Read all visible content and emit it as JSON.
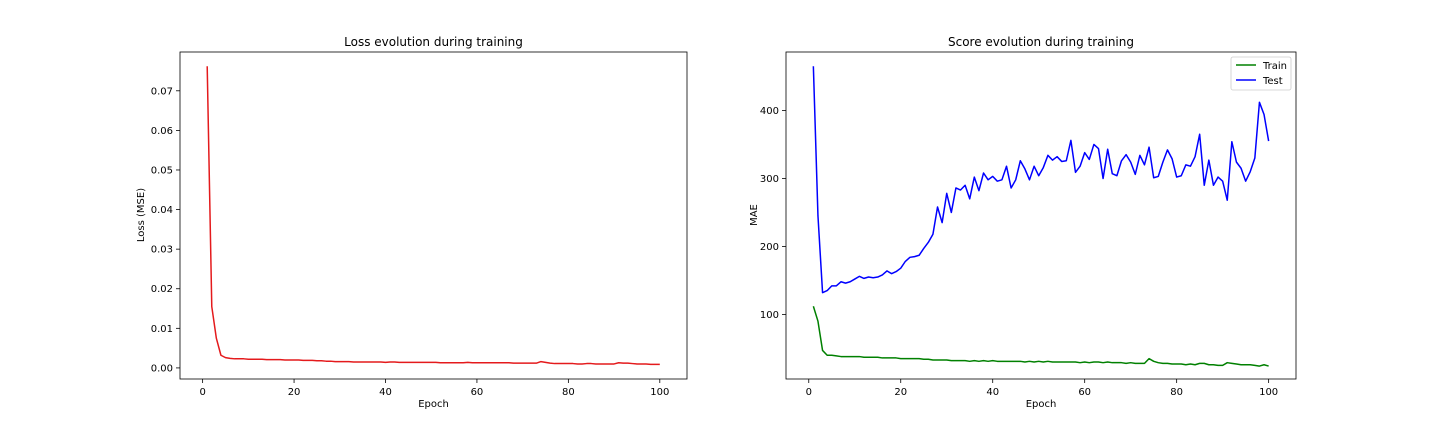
{
  "chart_data": [
    {
      "type": "line",
      "title": "Loss evolution during training",
      "xlabel": "Epoch",
      "ylabel": "Loss (MSE)",
      "xlim": [
        -4.95,
        105.95
      ],
      "ylim": [
        -0.0028,
        0.0798
      ],
      "xticks": [
        0,
        20,
        40,
        60,
        80,
        100
      ],
      "xtick_labels": [
        "0",
        "20",
        "40",
        "60",
        "80",
        "100"
      ],
      "yticks": [
        0.0,
        0.01,
        0.02,
        0.03,
        0.04,
        0.05,
        0.06,
        0.07
      ],
      "ytick_labels": [
        "0.00",
        "0.01",
        "0.02",
        "0.03",
        "0.04",
        "0.05",
        "0.06",
        "0.07"
      ],
      "grid": false,
      "x": [
        1,
        2,
        3,
        4,
        5,
        6,
        7,
        8,
        9,
        10,
        11,
        12,
        13,
        14,
        15,
        16,
        17,
        18,
        19,
        20,
        21,
        22,
        23,
        24,
        25,
        26,
        27,
        28,
        29,
        30,
        31,
        32,
        33,
        34,
        35,
        36,
        37,
        38,
        39,
        40,
        41,
        42,
        43,
        44,
        45,
        46,
        47,
        48,
        49,
        50,
        51,
        52,
        53,
        54,
        55,
        56,
        57,
        58,
        59,
        60,
        61,
        62,
        63,
        64,
        65,
        66,
        67,
        68,
        69,
        70,
        71,
        72,
        73,
        74,
        75,
        76,
        77,
        78,
        79,
        80,
        81,
        82,
        83,
        84,
        85,
        86,
        87,
        88,
        89,
        90,
        91,
        92,
        93,
        94,
        95,
        96,
        97,
        98,
        99,
        100
      ],
      "series": [
        {
          "color": "#e41a1c",
          "values": [
            0.0762,
            0.0155,
            0.0075,
            0.0032,
            0.0026,
            0.0024,
            0.0023,
            0.0023,
            0.0023,
            0.0022,
            0.0022,
            0.0022,
            0.0022,
            0.0021,
            0.0021,
            0.0021,
            0.0021,
            0.002,
            0.002,
            0.002,
            0.002,
            0.0019,
            0.0019,
            0.0019,
            0.0018,
            0.0018,
            0.0017,
            0.0017,
            0.0016,
            0.0016,
            0.0016,
            0.0016,
            0.0015,
            0.0015,
            0.0015,
            0.0015,
            0.0015,
            0.0015,
            0.0015,
            0.0014,
            0.0015,
            0.0015,
            0.0014,
            0.0014,
            0.0014,
            0.0014,
            0.0014,
            0.0014,
            0.0014,
            0.0014,
            0.0014,
            0.0013,
            0.0013,
            0.0013,
            0.0013,
            0.0013,
            0.0013,
            0.0014,
            0.0013,
            0.0013,
            0.0013,
            0.0013,
            0.0013,
            0.0013,
            0.0013,
            0.0013,
            0.0013,
            0.0012,
            0.0012,
            0.0012,
            0.0012,
            0.0012,
            0.0012,
            0.0016,
            0.0014,
            0.0012,
            0.0011,
            0.0011,
            0.0011,
            0.0011,
            0.0011,
            0.001,
            0.001,
            0.0011,
            0.0011,
            0.001,
            0.001,
            0.001,
            0.001,
            0.001,
            0.0013,
            0.0012,
            0.0012,
            0.0011,
            0.001,
            0.001,
            0.001,
            0.0009,
            0.0009,
            0.0009
          ]
        }
      ]
    },
    {
      "type": "line",
      "title": "Score evolution during training",
      "xlabel": "Epoch",
      "ylabel": "MAE",
      "xlim": [
        -4.95,
        105.95
      ],
      "ylim": [
        5,
        486
      ],
      "xticks": [
        0,
        20,
        40,
        60,
        80,
        100
      ],
      "xtick_labels": [
        "0",
        "20",
        "40",
        "60",
        "80",
        "100"
      ],
      "yticks": [
        100,
        200,
        300,
        400
      ],
      "ytick_labels": [
        "100",
        "200",
        "300",
        "400"
      ],
      "grid": false,
      "legend": "top-right",
      "x": [
        1,
        2,
        3,
        4,
        5,
        6,
        7,
        8,
        9,
        10,
        11,
        12,
        13,
        14,
        15,
        16,
        17,
        18,
        19,
        20,
        21,
        22,
        23,
        24,
        25,
        26,
        27,
        28,
        29,
        30,
        31,
        32,
        33,
        34,
        35,
        36,
        37,
        38,
        39,
        40,
        41,
        42,
        43,
        44,
        45,
        46,
        47,
        48,
        49,
        50,
        51,
        52,
        53,
        54,
        55,
        56,
        57,
        58,
        59,
        60,
        61,
        62,
        63,
        64,
        65,
        66,
        67,
        68,
        69,
        70,
        71,
        72,
        73,
        74,
        75,
        76,
        77,
        78,
        79,
        80,
        81,
        82,
        83,
        84,
        85,
        86,
        87,
        88,
        89,
        90,
        91,
        92,
        93,
        94,
        95,
        96,
        97,
        98,
        99,
        100
      ],
      "series": [
        {
          "name": "Train",
          "color": "#008000",
          "values": [
            112,
            90,
            47,
            40,
            40,
            39,
            38,
            38,
            38,
            38,
            38,
            37,
            37,
            37,
            37,
            36,
            36,
            36,
            36,
            35,
            35,
            35,
            35,
            35,
            34,
            34,
            33,
            33,
            33,
            33,
            32,
            32,
            32,
            32,
            31,
            32,
            31,
            32,
            31,
            32,
            31,
            31,
            31,
            31,
            31,
            31,
            30,
            31,
            30,
            31,
            30,
            31,
            30,
            30,
            30,
            30,
            30,
            30,
            29,
            30,
            29,
            30,
            30,
            29,
            30,
            29,
            29,
            29,
            28,
            29,
            28,
            28,
            28,
            35,
            31,
            29,
            28,
            28,
            27,
            27,
            27,
            26,
            27,
            26,
            28,
            28,
            26,
            26,
            25,
            25,
            29,
            28,
            27,
            26,
            26,
            26,
            25,
            24,
            26,
            24
          ]
        },
        {
          "name": "Test",
          "color": "#0000ff",
          "values": [
            465,
            245,
            132,
            135,
            142,
            142,
            148,
            146,
            148,
            152,
            156,
            153,
            155,
            154,
            155,
            158,
            164,
            160,
            163,
            168,
            178,
            184,
            185,
            187,
            197,
            206,
            218,
            258,
            235,
            278,
            250,
            286,
            283,
            290,
            270,
            302,
            282,
            308,
            298,
            303,
            296,
            298,
            318,
            286,
            298,
            326,
            314,
            298,
            318,
            304,
            316,
            334,
            327,
            332,
            325,
            326,
            356,
            309,
            318,
            338,
            328,
            350,
            344,
            300,
            343,
            307,
            304,
            326,
            335,
            324,
            306,
            334,
            320,
            346,
            301,
            303,
            324,
            342,
            329,
            302,
            304,
            320,
            318,
            332,
            365,
            290,
            327,
            290,
            302,
            296,
            268,
            354,
            324,
            315,
            296,
            310,
            330,
            412,
            394,
            355
          ]
        }
      ]
    }
  ]
}
